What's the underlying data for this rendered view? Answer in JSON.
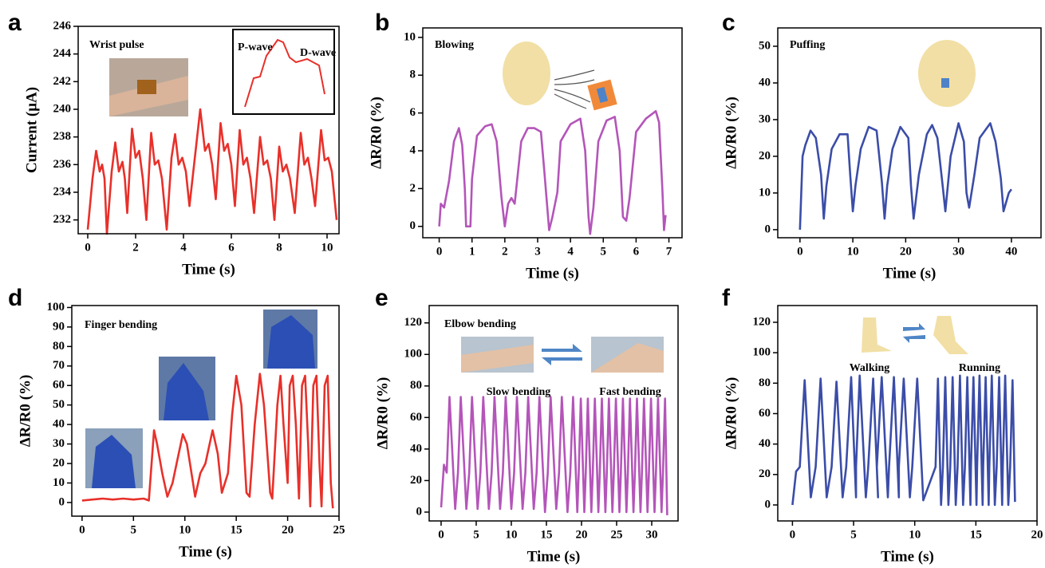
{
  "chart_data": [
    {
      "type": "line",
      "panel": "a",
      "xlabel": "Time (s)",
      "ylabel": "Current (μA)",
      "color": "#e8302a",
      "annotations": [
        "Wrist pulse",
        "P-wave",
        "D-wave"
      ],
      "xlim": [
        -0.4,
        10.5
      ],
      "ylim": [
        231,
        246
      ],
      "xticks": [
        0,
        2,
        4,
        6,
        8,
        10
      ],
      "yticks": [
        232,
        234,
        236,
        238,
        240,
        242,
        244,
        246
      ],
      "x": [
        0,
        0.2,
        0.35,
        0.5,
        0.6,
        0.7,
        0.8,
        1.0,
        1.15,
        1.3,
        1.45,
        1.55,
        1.65,
        1.85,
        2.0,
        2.15,
        2.3,
        2.45,
        2.65,
        2.8,
        2.95,
        3.1,
        3.3,
        3.5,
        3.65,
        3.8,
        3.95,
        4.1,
        4.25,
        4.7,
        4.9,
        5.05,
        5.2,
        5.35,
        5.55,
        5.7,
        5.85,
        6.0,
        6.15,
        6.35,
        6.5,
        6.65,
        6.8,
        6.95,
        7.2,
        7.35,
        7.5,
        7.65,
        7.8,
        8.0,
        8.15,
        8.3,
        8.45,
        8.65,
        8.9,
        9.05,
        9.2,
        9.35,
        9.5,
        9.75,
        9.9,
        10.05,
        10.2,
        10.4
      ],
      "values": [
        231.3,
        235,
        237,
        235.5,
        236,
        235,
        231,
        235.5,
        237.6,
        235.5,
        236.2,
        235,
        232.5,
        238.6,
        236.5,
        237,
        235,
        232,
        238.3,
        236,
        236.3,
        235,
        231.3,
        236.5,
        238.2,
        236,
        236.5,
        235.5,
        233,
        240,
        237,
        237.5,
        236,
        233.5,
        239,
        237,
        237.5,
        236,
        233,
        238.5,
        236,
        236.5,
        235,
        232.5,
        238,
        236,
        236.3,
        235,
        232,
        237.3,
        235.5,
        236,
        235,
        232.5,
        238.3,
        236,
        236.5,
        235,
        233,
        238.5,
        236.3,
        236.5,
        235.5,
        232
      ]
    },
    {
      "type": "line",
      "panel": "b",
      "xlabel": "Time (s)",
      "ylabel": "ΔR/R0 (%)",
      "color": "#b455b9",
      "annotations": [
        "Blowing"
      ],
      "xlim": [
        -0.5,
        7.4
      ],
      "ylim": [
        -0.6,
        10.5
      ],
      "xticks": [
        0,
        1,
        2,
        3,
        4,
        5,
        6,
        7
      ],
      "yticks": [
        0,
        2,
        4,
        6,
        8,
        10
      ],
      "x": [
        0,
        0.05,
        0.15,
        0.3,
        0.45,
        0.6,
        0.7,
        0.78,
        0.82,
        0.95,
        1.0,
        1.15,
        1.4,
        1.6,
        1.75,
        1.9,
        2.0,
        2.1,
        2.2,
        2.3,
        2.5,
        2.7,
        2.9,
        3.1,
        3.2,
        3.35,
        3.45,
        3.6,
        3.7,
        4.0,
        4.3,
        4.45,
        4.55,
        4.6,
        4.7,
        4.85,
        5.1,
        5.35,
        5.5,
        5.6,
        5.7,
        5.8,
        6.0,
        6.3,
        6.6,
        6.7,
        6.8,
        6.85,
        6.9
      ],
      "values": [
        0,
        1.2,
        1,
        2.4,
        4.5,
        5.2,
        4.3,
        2,
        0,
        0,
        2.5,
        4.8,
        5.3,
        5.4,
        4.5,
        1.5,
        0,
        1.2,
        1.5,
        1.2,
        4.5,
        5.2,
        5.2,
        5,
        3,
        -0.2,
        0.5,
        1.8,
        4.5,
        5.4,
        5.7,
        4,
        0.5,
        -0.4,
        1,
        4.5,
        5.6,
        5.8,
        4,
        0.5,
        0.3,
        1.5,
        5,
        5.7,
        6.1,
        5.5,
        2,
        -0.2,
        0.6
      ]
    },
    {
      "type": "line",
      "panel": "c",
      "xlabel": "Time (s)",
      "ylabel": "ΔR/R0 (%)",
      "color": "#3b4da8",
      "annotations": [
        "Puffing"
      ],
      "xlim": [
        -4.2,
        45.6
      ],
      "ylim": [
        -2.2,
        55
      ],
      "xticks": [
        0,
        10,
        20,
        30,
        40
      ],
      "yticks": [
        0,
        10,
        20,
        30,
        40,
        50
      ],
      "x": [
        0,
        0.5,
        1,
        2,
        3,
        4,
        4.5,
        5,
        6,
        7.5,
        9,
        9.5,
        10,
        10.5,
        11.5,
        13,
        14.5,
        15.5,
        16,
        16.5,
        17.5,
        19,
        20.5,
        21,
        21.5,
        22.5,
        24,
        25,
        26,
        27,
        27.5,
        28.5,
        30,
        31,
        31.5,
        32,
        33,
        34,
        36,
        37,
        38,
        38.5,
        39.5,
        40
      ],
      "values": [
        0,
        20,
        23,
        27,
        25,
        15,
        3,
        12,
        22,
        26,
        26,
        15,
        5,
        12,
        22,
        28,
        27,
        13,
        3,
        12,
        22,
        28,
        25,
        12,
        3,
        15,
        26,
        28.5,
        25,
        12,
        5,
        20,
        29,
        24,
        10,
        6,
        15,
        25,
        29,
        24,
        14,
        5,
        10,
        11
      ]
    },
    {
      "type": "line",
      "panel": "d",
      "xlabel": "Time (s)",
      "ylabel": "ΔR/R0 (%)",
      "color": "#e8302a",
      "annotations": [
        "Finger bending"
      ],
      "xlim": [
        -1,
        25
      ],
      "ylim": [
        -7,
        101
      ],
      "xticks": [
        0,
        5,
        10,
        15,
        20,
        25
      ],
      "yticks": [
        0,
        10,
        20,
        30,
        40,
        50,
        60,
        70,
        80,
        90,
        100
      ],
      "x": [
        0,
        1,
        2,
        3,
        4,
        5,
        6,
        6.5,
        7,
        7.3,
        7.8,
        8.3,
        8.8,
        9.2,
        9.8,
        10.2,
        10.8,
        11,
        11.5,
        12,
        12.7,
        13.2,
        13.6,
        14.2,
        14.6,
        15,
        15.5,
        16,
        16.3,
        16.8,
        17.3,
        17.7,
        18.3,
        18.5,
        19,
        19.3,
        19.6,
        20,
        20.2,
        20.5,
        20.8,
        21.1,
        21.4,
        21.7,
        22,
        22.2,
        22.5,
        22.8,
        23.1,
        23.3,
        23.6,
        23.9,
        24.2,
        24.4
      ],
      "values": [
        1,
        1.5,
        2,
        1.5,
        2,
        1.5,
        2,
        1,
        37,
        30,
        15,
        3,
        10,
        20,
        35,
        30,
        10,
        3,
        15,
        20,
        37,
        25,
        5,
        15,
        45,
        65,
        50,
        5,
        3,
        40,
        66,
        50,
        5,
        2,
        50,
        65,
        40,
        10,
        60,
        65,
        40,
        2,
        60,
        65,
        30,
        -2,
        60,
        65,
        20,
        -2,
        60,
        65,
        10,
        -3
      ]
    },
    {
      "type": "line",
      "panel": "e",
      "xlabel": "Time (s)",
      "ylabel": "ΔR/R0 (%)",
      "color": "#b455b9",
      "annotations": [
        "Elbow bending",
        "Slow bending",
        "Fast bending"
      ],
      "xlim": [
        -1.7,
        33.75
      ],
      "ylim": [
        -5.6,
        131
      ],
      "xticks": [
        0,
        5,
        10,
        15,
        20,
        25,
        30
      ],
      "yticks": [
        0,
        20,
        40,
        60,
        80,
        100,
        120
      ],
      "x": [
        0,
        0.4,
        0.8,
        1.2,
        2.0,
        2.4,
        2.8,
        3.6,
        4.0,
        4.4,
        5.2,
        5.6,
        6.0,
        6.8,
        7.2,
        7.6,
        8.4,
        8.8,
        9.2,
        10.0,
        10.4,
        10.8,
        11.6,
        12.0,
        12.4,
        13.2,
        13.6,
        14.0,
        14.8,
        15.2,
        15.6,
        16.4,
        16.8,
        17.2,
        18.0,
        18.4,
        18.8,
        19.4,
        19.6,
        19.9,
        20.4,
        20.6,
        20.9,
        21.4,
        21.6,
        21.9,
        22.4,
        22.6,
        22.9,
        23.4,
        23.6,
        23.9,
        24.4,
        24.6,
        24.9,
        25.4,
        25.6,
        25.9,
        26.4,
        26.6,
        26.9,
        27.4,
        27.6,
        27.9,
        28.4,
        28.6,
        28.9,
        29.4,
        29.6,
        29.9,
        30.4,
        30.6,
        30.9,
        31.4,
        31.6,
        31.9,
        32.2
      ],
      "values": [
        3,
        30,
        25,
        73,
        2,
        25,
        73,
        2,
        25,
        73,
        2,
        25,
        73,
        2,
        25,
        73,
        2,
        25,
        73,
        2,
        25,
        73,
        2,
        25,
        73,
        2,
        25,
        73,
        0,
        25,
        73,
        2,
        25,
        73,
        0,
        25,
        73,
        0,
        25,
        72,
        0,
        25,
        72,
        0,
        25,
        72,
        0,
        25,
        72,
        0,
        25,
        72,
        0,
        25,
        72,
        0,
        25,
        72,
        0,
        25,
        72,
        0,
        25,
        72,
        0,
        25,
        72,
        0,
        25,
        72,
        0,
        25,
        72,
        0,
        25,
        72,
        -2
      ]
    },
    {
      "type": "line",
      "panel": "f",
      "xlabel": "Time (s)",
      "ylabel": "ΔR/R0 (%)",
      "color": "#3b4da8",
      "annotations": [
        "Walking",
        "Running"
      ],
      "xlim": [
        -1.2,
        20
      ],
      "ylim": [
        -10.5,
        131
      ],
      "xticks": [
        0,
        5,
        10,
        15,
        20
      ],
      "yticks": [
        0,
        20,
        40,
        60,
        80,
        100,
        120
      ],
      "x": [
        0,
        0.3,
        0.6,
        1.0,
        1.5,
        1.9,
        2.3,
        2.8,
        3.2,
        3.6,
        4.1,
        4.4,
        4.8,
        5.2,
        5.2,
        5.5,
        6.0,
        6.2,
        6.6,
        7.0,
        6.9,
        7.3,
        7.8,
        7.9,
        8.3,
        8.7,
        8.7,
        9.1,
        9.6,
        9.8,
        10.2,
        10.7,
        11.7,
        11.9,
        12.15,
        12.3,
        12.5,
        12.75,
        12.9,
        13.1,
        13.35,
        13.5,
        13.7,
        13.95,
        14.1,
        14.3,
        14.55,
        14.6,
        14.8,
        15.05,
        15.1,
        15.3,
        15.55,
        15.6,
        15.8,
        16.05,
        16.1,
        16.3,
        16.55,
        16.7,
        16.9,
        17.15,
        17.2,
        17.4,
        17.65,
        17.8,
        18.0,
        18.2
      ],
      "values": [
        0,
        22,
        25,
        82,
        5,
        25,
        83,
        5,
        25,
        81,
        5,
        25,
        84,
        5,
        25,
        85,
        5,
        25,
        83,
        5,
        25,
        84,
        5,
        25,
        84,
        5,
        25,
        83,
        5,
        25,
        83,
        3,
        25,
        83,
        0,
        25,
        84,
        0,
        25,
        84,
        0,
        25,
        85,
        0,
        25,
        84,
        0,
        25,
        84,
        0,
        25,
        85,
        0,
        25,
        84,
        0,
        25,
        85,
        0,
        25,
        84,
        0,
        25,
        85,
        0,
        25,
        82,
        2
      ]
    }
  ]
}
